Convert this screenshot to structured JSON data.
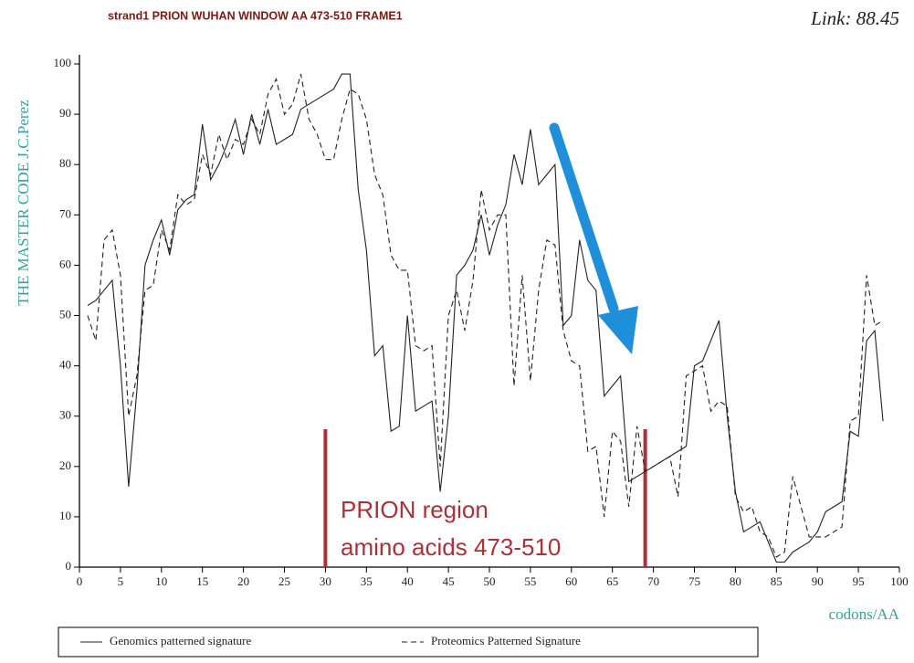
{
  "chart_data": {
    "type": "line",
    "title": "strand1 PRION WUHAN WINDOW AA 473-510 FRAME1",
    "subtitle": "Link: 88.45",
    "y_label": "THE MASTER CODE J.C.Perez",
    "x_label": "codons/AA",
    "annotations": [
      "PRION region",
      "amino acids 473-510"
    ],
    "highlight_x": [
      30,
      69
    ],
    "x": [
      1,
      2,
      3,
      4,
      5,
      6,
      7,
      8,
      9,
      10,
      11,
      12,
      13,
      14,
      15,
      16,
      17,
      18,
      19,
      20,
      21,
      22,
      23,
      24,
      25,
      26,
      27,
      28,
      29,
      30,
      31,
      32,
      33,
      34,
      35,
      36,
      37,
      38,
      39,
      40,
      41,
      42,
      43,
      44,
      45,
      46,
      47,
      48,
      49,
      50,
      51,
      52,
      53,
      54,
      55,
      56,
      57,
      58,
      59,
      60,
      61,
      62,
      63,
      64,
      65,
      66,
      67,
      68,
      69,
      70,
      71,
      72,
      73,
      74,
      75,
      76,
      77,
      78,
      79,
      80,
      81,
      82,
      83,
      84,
      85,
      86,
      87,
      88,
      89,
      90,
      91,
      92,
      93,
      94,
      95,
      96,
      97,
      98
    ],
    "series": [
      {
        "name": "Genomics patterned signature",
        "color": "#222222",
        "dash": "none",
        "values": [
          52,
          53,
          55,
          57,
          40,
          16,
          35,
          60,
          65,
          69,
          62,
          71,
          73,
          74,
          88,
          77,
          80,
          84,
          89,
          82,
          90,
          84,
          91,
          84,
          85,
          86,
          91,
          92,
          93,
          94,
          95,
          98,
          98,
          75,
          63,
          42,
          44,
          27,
          28,
          50,
          31,
          32,
          33,
          15,
          30,
          58,
          60,
          63,
          70,
          62,
          68,
          72,
          82,
          76,
          87,
          76,
          78,
          80,
          48,
          50,
          65,
          57,
          55,
          34,
          36,
          38,
          17,
          18,
          19,
          20,
          21,
          22,
          23,
          24,
          40,
          41,
          45,
          49,
          30,
          15,
          7,
          8,
          9,
          5,
          1,
          1,
          3,
          4,
          5,
          7,
          11,
          12,
          13,
          27,
          26,
          45,
          47,
          29
        ]
      },
      {
        "name": "Proteomics Patterned Signature",
        "color": "#222222",
        "dash": "6 4",
        "values": [
          50,
          45,
          65,
          67,
          58,
          30,
          38,
          55,
          56,
          67,
          63,
          74,
          72,
          73,
          82,
          78,
          86,
          81,
          85,
          84,
          89,
          86,
          94,
          97,
          90,
          92,
          98,
          89,
          86,
          81,
          81,
          89,
          95,
          94,
          89,
          78,
          74,
          62,
          59,
          59,
          44,
          43,
          44,
          20,
          50,
          55,
          47,
          57,
          75,
          67,
          70,
          70,
          36,
          58,
          37,
          55,
          65,
          64,
          47,
          41,
          40,
          23,
          24,
          10,
          27,
          25,
          12,
          28,
          19,
          20,
          21,
          22,
          14,
          38,
          39,
          40,
          31,
          33,
          32,
          14,
          11,
          12,
          7,
          6,
          2,
          3,
          18,
          12,
          6,
          6,
          6,
          7,
          8,
          29,
          30,
          58,
          48,
          49
        ]
      }
    ],
    "xlim": [
      0,
      100
    ],
    "xticks": [
      0,
      5,
      10,
      15,
      20,
      25,
      30,
      35,
      40,
      45,
      50,
      55,
      60,
      65,
      70,
      75,
      80,
      85,
      90,
      95,
      100
    ],
    "ylim": [
      0,
      100
    ],
    "yticks": [
      0,
      10,
      20,
      30,
      40,
      50,
      60,
      70,
      80,
      90,
      100
    ]
  }
}
